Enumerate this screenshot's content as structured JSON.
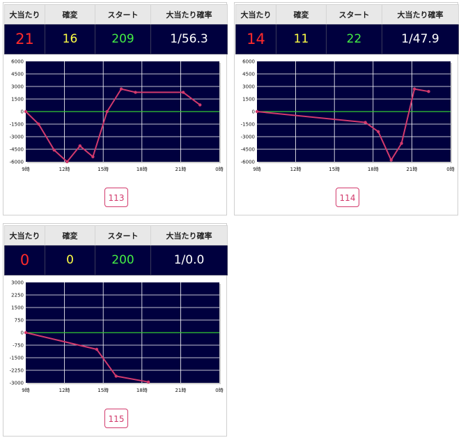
{
  "headers": {
    "hits": "大当たり",
    "kakuhen": "確変",
    "start": "スタート",
    "probability": "大当たり確率"
  },
  "colors": {
    "table_bg": "#00003e",
    "hits": "#ff2a2a",
    "kakuhen": "#ffff44",
    "start": "#44ee44",
    "probability": "#ffffff",
    "zero_line": "#33cc33",
    "series_line": "#d23a6c",
    "button_border": "#d23a6c"
  },
  "cards": [
    {
      "stats": {
        "hits": "21",
        "kakuhen": "16",
        "start": "209",
        "probability": "1/56.3"
      },
      "button_label": "113",
      "chart_data": {
        "type": "line",
        "x_ticks": [
          "9時",
          "12時",
          "15時",
          "18時",
          "21時",
          "0時"
        ],
        "y_ticks": [
          "6000",
          "4500",
          "3000",
          "1500",
          "0",
          "-1500",
          "-3000",
          "-4500",
          "-6000"
        ],
        "xlim": [
          9,
          24
        ],
        "ylim": [
          -6000,
          6000
        ],
        "grid": true,
        "series": [
          {
            "points": [
              {
                "x": 9.0,
                "y": 0
              },
              {
                "x": 10.0,
                "y": -1500
              },
              {
                "x": 11.2,
                "y": -4600
              },
              {
                "x": 12.2,
                "y": -6000
              },
              {
                "x": 13.2,
                "y": -4100
              },
              {
                "x": 14.2,
                "y": -5400
              },
              {
                "x": 15.3,
                "y": 0
              },
              {
                "x": 16.4,
                "y": 2700
              },
              {
                "x": 17.5,
                "y": 2300
              },
              {
                "x": 21.2,
                "y": 2300
              },
              {
                "x": 22.5,
                "y": 800
              }
            ]
          }
        ]
      }
    },
    {
      "stats": {
        "hits": "14",
        "kakuhen": "11",
        "start": "22",
        "probability": "1/47.9"
      },
      "button_label": "114",
      "chart_data": {
        "type": "line",
        "x_ticks": [
          "9時",
          "12時",
          "15時",
          "18時",
          "21時",
          "0時"
        ],
        "y_ticks": [
          "6000",
          "4500",
          "3000",
          "1500",
          "0",
          "-1500",
          "-3000",
          "-4500",
          "-6000"
        ],
        "xlim": [
          9,
          24
        ],
        "ylim": [
          -6000,
          6000
        ],
        "grid": true,
        "series": [
          {
            "points": [
              {
                "x": 9.0,
                "y": 0
              },
              {
                "x": 17.4,
                "y": -1300
              },
              {
                "x": 18.4,
                "y": -2400
              },
              {
                "x": 19.4,
                "y": -5800
              },
              {
                "x": 20.2,
                "y": -3800
              },
              {
                "x": 21.2,
                "y": 2700
              },
              {
                "x": 22.3,
                "y": 2400
              }
            ]
          }
        ]
      }
    },
    {
      "stats": {
        "hits": "0",
        "kakuhen": "0",
        "start": "200",
        "probability": "1/0.0"
      },
      "button_label": "115",
      "chart_data": {
        "type": "line",
        "x_ticks": [
          "9時",
          "12時",
          "15時",
          "18時",
          "21時",
          "0時"
        ],
        "y_ticks": [
          "3000",
          "2250",
          "1500",
          "750",
          "0",
          "-750",
          "-1500",
          "-2250",
          "-3000"
        ],
        "xlim": [
          9,
          24
        ],
        "ylim": [
          -3000,
          3000
        ],
        "grid": true,
        "series": [
          {
            "points": [
              {
                "x": 9.0,
                "y": 0
              },
              {
                "x": 14.5,
                "y": -1000
              },
              {
                "x": 16.0,
                "y": -2600
              },
              {
                "x": 18.5,
                "y": -2950
              }
            ]
          }
        ]
      }
    }
  ]
}
